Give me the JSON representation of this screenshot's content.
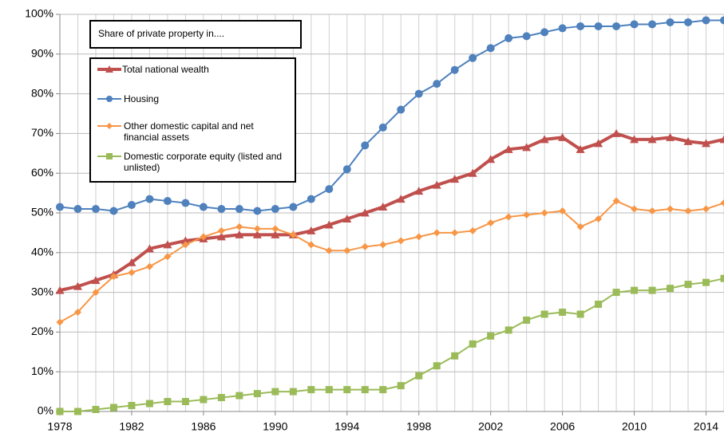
{
  "chart_data": {
    "type": "line",
    "annotation": "Share of private property in....",
    "x": [
      1978,
      1979,
      1980,
      1981,
      1982,
      1983,
      1984,
      1985,
      1986,
      1987,
      1988,
      1989,
      1990,
      1991,
      1992,
      1993,
      1994,
      1995,
      1996,
      1997,
      1998,
      1999,
      2000,
      2001,
      2002,
      2003,
      2004,
      2005,
      2006,
      2007,
      2008,
      2009,
      2010,
      2011,
      2012,
      2013,
      2014,
      2015
    ],
    "xlim": [
      1978,
      2015
    ],
    "xticks": [
      1978,
      1982,
      1986,
      1990,
      1994,
      1998,
      2002,
      2006,
      2010,
      2014
    ],
    "ylim": [
      0,
      100
    ],
    "yticks": [
      {
        "value": 0,
        "label": "0%"
      },
      {
        "value": 10,
        "label": "10%"
      },
      {
        "value": 20,
        "label": "20%"
      },
      {
        "value": 30,
        "label": "30%"
      },
      {
        "value": 40,
        "label": "40%"
      },
      {
        "value": 50,
        "label": "50%"
      },
      {
        "value": 60,
        "label": "60%"
      },
      {
        "value": 70,
        "label": "70%"
      },
      {
        "value": 80,
        "label": "80%"
      },
      {
        "value": 90,
        "label": "90%"
      },
      {
        "value": 100,
        "label": "100%"
      }
    ],
    "grid": true,
    "series": [
      {
        "name": "Total national wealth",
        "color": "#c0504d",
        "marker": "triangle",
        "values": [
          30.5,
          31.5,
          33,
          34.5,
          37.5,
          41,
          42,
          43,
          43.5,
          44,
          44.5,
          44.5,
          44.5,
          44.5,
          45.5,
          47,
          48.5,
          50,
          51.5,
          53.5,
          55.5,
          57,
          58.5,
          60,
          63.5,
          66,
          66.5,
          68.5,
          69,
          66,
          67.5,
          70,
          68.5,
          68.5,
          69,
          68,
          67.5,
          68.5
        ]
      },
      {
        "name": "Housing",
        "color": "#4f81bd",
        "marker": "circle",
        "values": [
          51.5,
          51,
          51,
          50.5,
          52,
          53.5,
          53,
          52.5,
          51.5,
          51,
          51,
          50.5,
          51,
          51.5,
          53.5,
          56,
          61,
          67,
          71.5,
          76,
          80,
          82.5,
          86,
          89,
          91.5,
          94,
          94.5,
          95.5,
          96.5,
          97,
          97,
          97,
          97.5,
          97.5,
          98,
          98,
          98.5,
          98.5
        ]
      },
      {
        "name": "Other domestic capital and net financial assets",
        "color": "#f79646",
        "marker": "diamond",
        "values": [
          22.5,
          25,
          30,
          34,
          35,
          36.5,
          39,
          42,
          44,
          45.5,
          46.5,
          46,
          46,
          44.5,
          42,
          40.5,
          40.5,
          41.5,
          42,
          43,
          44,
          45,
          45,
          45.5,
          47.5,
          49,
          49.5,
          50,
          50.5,
          46.5,
          48.5,
          53,
          51,
          50.5,
          51,
          50.5,
          51,
          52.5
        ]
      },
      {
        "name": "Domestic corporate equity (listed and unlisted)",
        "color": "#9bbb59",
        "marker": "square",
        "values": [
          0,
          0,
          0.5,
          1,
          1.5,
          2,
          2.5,
          2.5,
          3,
          3.5,
          4,
          4.5,
          5,
          5,
          5.5,
          5.5,
          5.5,
          5.5,
          5.5,
          6.5,
          9,
          11.5,
          14,
          17,
          19,
          20.5,
          23,
          24.5,
          25,
          24.5,
          27,
          30,
          30.5,
          30.5,
          31,
          32,
          32.5,
          33.5
        ]
      }
    ]
  }
}
